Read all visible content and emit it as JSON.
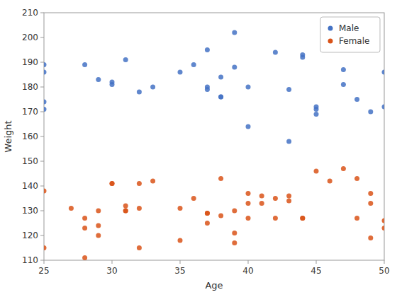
{
  "chart_data": {
    "type": "scatter",
    "xlabel": "Age",
    "ylabel": "Weight",
    "xlim": [
      25,
      50
    ],
    "ylim": [
      110,
      210
    ],
    "xticks": [
      25,
      30,
      35,
      40,
      45,
      50
    ],
    "yticks": [
      110,
      120,
      130,
      140,
      150,
      160,
      170,
      180,
      190,
      200,
      210
    ],
    "marker": "circle",
    "legend": "upper right",
    "series": [
      {
        "name": "Male",
        "color": "#4472C4",
        "x": [
          25,
          25,
          25,
          25,
          28,
          29,
          30,
          30,
          31,
          32,
          33,
          35,
          36,
          37,
          37,
          37,
          38,
          38,
          38,
          39,
          39,
          40,
          40,
          42,
          43,
          43,
          44,
          44,
          45,
          45,
          45,
          47,
          47,
          48,
          49,
          50,
          50
        ],
        "values": [
          189,
          186,
          174,
          171,
          189,
          183,
          182,
          181,
          191,
          178,
          180,
          186,
          189,
          195,
          180,
          179,
          184,
          176,
          176,
          202,
          188,
          180,
          164,
          194,
          158,
          179,
          193,
          192,
          169,
          172,
          171,
          187,
          181,
          175,
          170,
          186,
          172
        ]
      },
      {
        "name": "Female",
        "color": "#D95319",
        "x": [
          25,
          25,
          27,
          28,
          28,
          28,
          29,
          29,
          29,
          30,
          30,
          31,
          31,
          31,
          32,
          32,
          32,
          33,
          35,
          35,
          36,
          37,
          37,
          37,
          38,
          38,
          39,
          39,
          39,
          40,
          40,
          40,
          41,
          41,
          42,
          42,
          43,
          43,
          44,
          44,
          45,
          46,
          47,
          48,
          48,
          49,
          49,
          49,
          50,
          50
        ],
        "values": [
          115,
          138,
          131,
          127,
          123,
          111,
          130,
          124,
          120,
          141,
          141,
          132,
          130,
          130,
          141,
          131,
          115,
          142,
          131,
          118,
          135,
          129,
          129,
          125,
          143,
          128,
          130,
          121,
          117,
          137,
          133,
          127,
          136,
          133,
          135,
          127,
          136,
          134,
          127,
          127,
          146,
          142,
          147,
          143,
          127,
          137,
          133,
          119,
          126,
          123
        ]
      }
    ]
  }
}
